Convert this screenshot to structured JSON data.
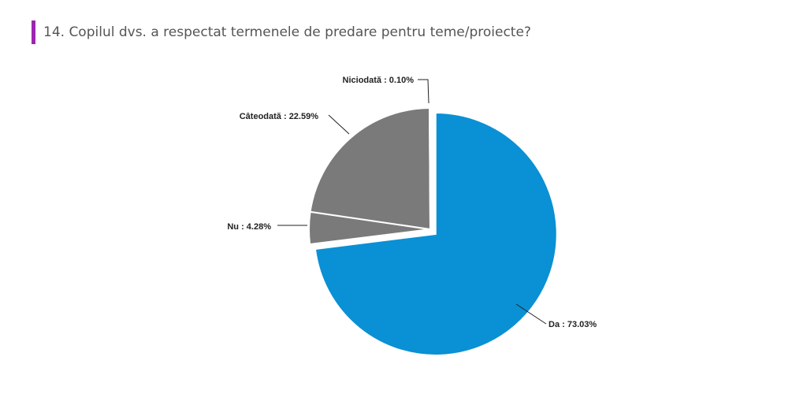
{
  "question": {
    "title": "14. Copilul dvs. a respectat termenele de predare pentru teme/proiecte?"
  },
  "colors": {
    "accent_bar": "#9c27b0",
    "da": "#0a90d4",
    "other": "#7a7a7a"
  },
  "chart_data": {
    "type": "pie",
    "title": "14. Copilul dvs. a respectat termenele de predare pentru teme/proiecte?",
    "slices": [
      {
        "name": "Da",
        "value": 73.03,
        "label": "Da : 73.03%",
        "color": "#0a90d4",
        "exploded": true
      },
      {
        "name": "Nu",
        "value": 4.28,
        "label": "Nu : 4.28%",
        "color": "#7a7a7a",
        "exploded": false
      },
      {
        "name": "Câteodată",
        "value": 22.59,
        "label": "Câteodată : 22.59%",
        "color": "#7a7a7a",
        "exploded": false
      },
      {
        "name": "Niciodată",
        "value": 0.1,
        "label": "Niciodată : 0.10%",
        "color": "#7a7a7a",
        "exploded": false
      }
    ],
    "legend": "none"
  }
}
